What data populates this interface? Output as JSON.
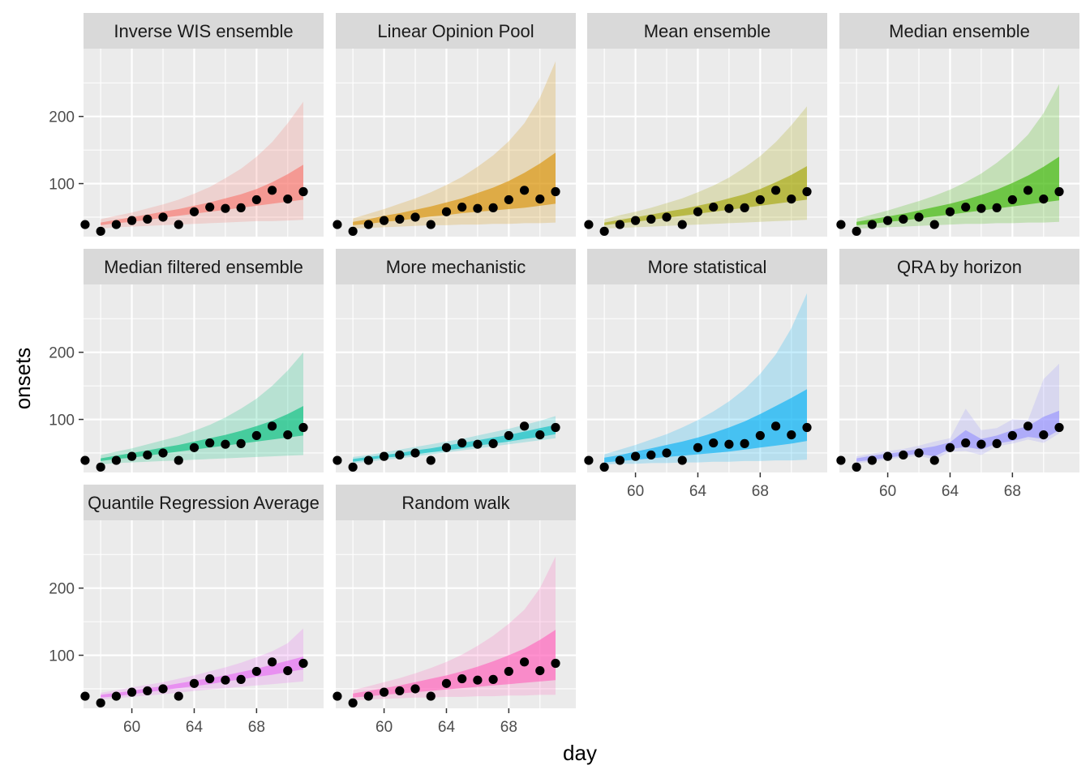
{
  "chart_data": {
    "type": "line",
    "xlabel": "day",
    "ylabel": "onsets",
    "xlim": [
      56.9,
      72.3
    ],
    "ylim": [
      21,
      301
    ],
    "x_ticks": [
      60,
      64,
      68
    ],
    "y_ticks": [
      100,
      200
    ],
    "grid": true,
    "observed": {
      "x": [
        57,
        58,
        59,
        60,
        61,
        62,
        63,
        64,
        65,
        66,
        67,
        68,
        69,
        70,
        71
      ],
      "y": [
        39,
        29,
        39,
        45,
        47,
        50,
        39,
        58,
        65,
        63,
        64,
        76,
        90,
        77,
        88
      ]
    },
    "forecast_days": [
      58,
      59,
      60,
      61,
      62,
      63,
      64,
      65,
      66,
      67,
      68,
      69,
      70,
      71
    ],
    "panels": [
      {
        "label": "Inverse WIS ensemble",
        "color": "#F8766D",
        "outer_lo": [
          33,
          35,
          36,
          37,
          38,
          39,
          40,
          41,
          42,
          43,
          44,
          44,
          45,
          46
        ],
        "outer_hi": [
          47,
          52,
          57,
          63,
          69,
          76,
          85,
          95,
          108,
          122,
          140,
          162,
          190,
          222
        ],
        "inner_lo": [
          38,
          41,
          43,
          46,
          49,
          52,
          55,
          58,
          61,
          64,
          67,
          70,
          73,
          76
        ],
        "inner_hi": [
          42,
          46,
          50,
          54,
          58,
          62,
          67,
          72,
          78,
          84,
          92,
          102,
          114,
          128
        ]
      },
      {
        "label": "Linear Opinion Pool",
        "color": "#D89000",
        "outer_lo": [
          33,
          34,
          35,
          36,
          37,
          38,
          38,
          39,
          39,
          40,
          40,
          41,
          41,
          42
        ],
        "outer_hi": [
          48,
          55,
          62,
          70,
          78,
          87,
          98,
          110,
          125,
          142,
          163,
          190,
          228,
          282
        ],
        "inner_lo": [
          38,
          40,
          43,
          45,
          48,
          51,
          53,
          56,
          58,
          60,
          62,
          64,
          67,
          70
        ],
        "inner_hi": [
          43,
          47,
          52,
          56,
          61,
          66,
          72,
          78,
          86,
          94,
          104,
          116,
          130,
          146
        ]
      },
      {
        "label": "Mean ensemble",
        "color": "#A3A500",
        "outer_lo": [
          33,
          34,
          35,
          36,
          37,
          38,
          39,
          40,
          41,
          42,
          43,
          44,
          45,
          46
        ],
        "outer_hi": [
          47,
          53,
          58,
          64,
          71,
          78,
          87,
          97,
          109,
          124,
          141,
          162,
          187,
          215
        ],
        "inner_lo": [
          38,
          41,
          43,
          46,
          49,
          52,
          55,
          58,
          61,
          64,
          67,
          70,
          73,
          76
        ],
        "inner_hi": [
          42,
          46,
          50,
          54,
          58,
          62,
          67,
          72,
          78,
          84,
          92,
          102,
          113,
          126
        ]
      },
      {
        "label": "Median ensemble",
        "color": "#39B600",
        "outer_lo": [
          33,
          34,
          35,
          36,
          37,
          38,
          39,
          40,
          40,
          41,
          41,
          42,
          42,
          43
        ],
        "outer_hi": [
          48,
          54,
          60,
          67,
          74,
          82,
          91,
          102,
          115,
          131,
          150,
          173,
          205,
          248
        ],
        "inner_lo": [
          38,
          40,
          43,
          45,
          48,
          51,
          54,
          57,
          60,
          63,
          66,
          69,
          72,
          75
        ],
        "inner_hi": [
          43,
          47,
          51,
          55,
          60,
          65,
          70,
          76,
          83,
          91,
          101,
          112,
          125,
          140
        ]
      },
      {
        "label": "Median filtered ensemble",
        "color": "#00BF7D",
        "outer_lo": [
          33,
          35,
          36,
          37,
          38,
          39,
          40,
          41,
          42,
          43,
          44,
          45,
          46,
          47
        ],
        "outer_hi": [
          47,
          52,
          57,
          63,
          69,
          75,
          83,
          92,
          103,
          116,
          131,
          150,
          173,
          200
        ],
        "inner_lo": [
          38,
          41,
          43,
          46,
          49,
          52,
          55,
          58,
          61,
          64,
          67,
          70,
          73,
          76
        ],
        "inner_hi": [
          42,
          46,
          50,
          54,
          58,
          62,
          67,
          72,
          77,
          83,
          90,
          98,
          108,
          120
        ]
      },
      {
        "label": "More mechanistic",
        "color": "#00BFC4",
        "outer_lo": [
          35,
          37,
          40,
          42,
          45,
          48,
          51,
          54,
          57,
          60,
          63,
          66,
          69,
          72
        ],
        "outer_hi": [
          44,
          47,
          51,
          55,
          59,
          63,
          67,
          71,
          76,
          81,
          86,
          92,
          98,
          105
        ],
        "inner_lo": [
          37,
          40,
          43,
          45,
          48,
          51,
          54,
          57,
          61,
          64,
          67,
          71,
          74,
          78
        ],
        "inner_hi": [
          41,
          44,
          47,
          50,
          54,
          57,
          61,
          65,
          69,
          73,
          77,
          82,
          87,
          92
        ]
      },
      {
        "label": "More statistical",
        "color": "#00B0F6",
        "outer_lo": [
          33,
          34,
          34,
          35,
          35,
          36,
          36,
          37,
          37,
          38,
          38,
          39,
          39,
          40
        ],
        "outer_hi": [
          48,
          55,
          62,
          70,
          78,
          88,
          99,
          112,
          127,
          145,
          168,
          197,
          236,
          288
        ],
        "inner_lo": [
          36,
          38,
          40,
          42,
          44,
          46,
          48,
          50,
          52,
          55,
          58,
          61,
          64,
          68
        ],
        "inner_hi": [
          43,
          47,
          52,
          57,
          62,
          67,
          73,
          80,
          88,
          97,
          108,
          120,
          132,
          145
        ]
      },
      {
        "label": "QRA by horizon",
        "color": "#9590FF",
        "outer_lo": [
          35,
          37,
          41,
          43,
          46,
          40,
          52,
          53,
          47,
          60,
          64,
          70,
          65,
          79
        ],
        "outer_hi": [
          45,
          49,
          53,
          56,
          61,
          67,
          72,
          116,
          84,
          87,
          100,
          99,
          160,
          183
        ],
        "inner_lo": [
          37,
          40,
          43,
          46,
          49,
          45,
          56,
          59,
          55,
          64,
          68,
          74,
          71,
          84
        ],
        "inner_hi": [
          42,
          46,
          49,
          52,
          56,
          60,
          66,
          84,
          71,
          76,
          84,
          90,
          104,
          113
        ]
      },
      {
        "label": "Quantile Regression Average",
        "color": "#E76BF3",
        "outer_lo": [
          34,
          36,
          38,
          40,
          42,
          44,
          47,
          49,
          51,
          53,
          55,
          57,
          59,
          61
        ],
        "outer_hi": [
          44,
          48,
          52,
          56,
          60,
          65,
          70,
          76,
          82,
          89,
          97,
          106,
          118,
          140
        ],
        "inner_lo": [
          37,
          39,
          42,
          45,
          48,
          51,
          54,
          57,
          61,
          64,
          68,
          71,
          75,
          79
        ],
        "inner_hi": [
          41,
          44,
          47,
          51,
          54,
          58,
          62,
          66,
          70,
          75,
          80,
          86,
          92,
          98
        ]
      },
      {
        "label": "Random walk",
        "color": "#FF62BC",
        "outer_lo": [
          33,
          34,
          35,
          36,
          37,
          37,
          38,
          38,
          39,
          39,
          40,
          40,
          41,
          41
        ],
        "outer_hi": [
          48,
          54,
          60,
          66,
          73,
          81,
          90,
          101,
          114,
          129,
          147,
          168,
          200,
          247
        ],
        "inner_lo": [
          37,
          39,
          41,
          43,
          45,
          47,
          49,
          51,
          53,
          55,
          57,
          59,
          61,
          63
        ],
        "inner_hi": [
          43,
          47,
          51,
          55,
          60,
          65,
          70,
          76,
          83,
          91,
          100,
          110,
          123,
          138
        ]
      }
    ]
  }
}
